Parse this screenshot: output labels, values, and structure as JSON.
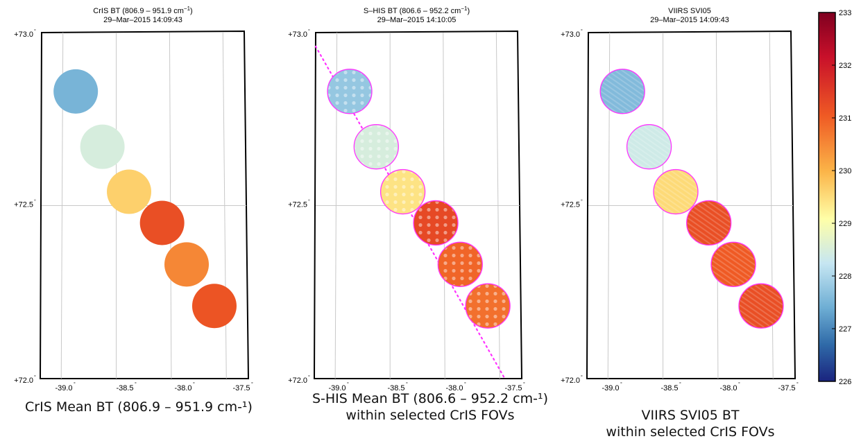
{
  "colorbar": {
    "min": 226,
    "max": 233,
    "ticks": [
      "233",
      "232",
      "231",
      "230",
      "229",
      "228",
      "227",
      "226"
    ]
  },
  "chart_data": [
    {
      "type": "map",
      "title_line1": "CrIS BT (806.9 – 951.9 cm",
      "title_sup": "−1",
      "title_close": ")",
      "title_line2": "29–Mar–2015 14:09:43",
      "lat_range": [
        72.0,
        73.0
      ],
      "lon_range": [
        -39.2,
        -37.3
      ],
      "lat_ticks": [
        "+73.0",
        "+72.5",
        "+72.0"
      ],
      "lon_ticks": [
        "-39.0",
        "-38.5",
        "-38.0",
        "-37.5"
      ],
      "fovs": [
        {
          "lon": -38.88,
          "lat": 72.83,
          "bt": 227.6
        },
        {
          "lon": -38.63,
          "lat": 72.67,
          "bt": 228.6
        },
        {
          "lon": -38.38,
          "lat": 72.54,
          "bt": 229.6
        },
        {
          "lon": -38.07,
          "lat": 72.45,
          "bt": 230.9
        },
        {
          "lon": -37.84,
          "lat": 72.33,
          "bt": 230.3
        },
        {
          "lon": -37.58,
          "lat": 72.21,
          "bt": 230.8
        }
      ],
      "caption": [
        "CrIS Mean BT (806.9 – 951.9 cm-¹)"
      ]
    },
    {
      "type": "map",
      "title_line1": "S–HIS BT (806.6 – 952.2 cm",
      "title_sup": "−1",
      "title_close": ")",
      "title_line2": "29–Mar–2015 14:10:05",
      "lat_range": [
        72.0,
        73.0
      ],
      "lon_range": [
        -39.2,
        -37.3
      ],
      "lat_ticks": [
        "+73.0",
        "+72.5",
        "+72.0"
      ],
      "lon_ticks": [
        "-39.0",
        "-38.5",
        "-38.0",
        "-37.5"
      ],
      "fovs": [
        {
          "lon": -38.88,
          "lat": 72.83,
          "bt": 227.9
        },
        {
          "lon": -38.63,
          "lat": 72.67,
          "bt": 228.6
        },
        {
          "lon": -38.38,
          "lat": 72.54,
          "bt": 229.4
        },
        {
          "lon": -38.07,
          "lat": 72.45,
          "bt": 231.0
        },
        {
          "lon": -37.84,
          "lat": 72.33,
          "bt": 230.6
        },
        {
          "lon": -37.58,
          "lat": 72.21,
          "bt": 230.5
        }
      ],
      "flight_track": [
        [
          -39.2,
          72.96
        ],
        [
          -37.42,
          72.0
        ]
      ],
      "caption": [
        "S-HIS Mean BT (806.6 – 952.2 cm-¹)",
        "within selected CrIS FOVs"
      ]
    },
    {
      "type": "map",
      "title_line1": "VIIRS SVI05",
      "title_sup": "",
      "title_close": "",
      "title_line2": "29–Mar–2015 14:09:43",
      "lat_range": [
        72.0,
        73.0
      ],
      "lon_range": [
        -39.2,
        -37.3
      ],
      "lat_ticks": [
        "+73.0",
        "+72.5",
        "+72.0"
      ],
      "lon_ticks": [
        "-39.0",
        "-38.5",
        "-38.0",
        "-37.5"
      ],
      "fovs": [
        {
          "lon": -38.88,
          "lat": 72.83,
          "bt": 227.7
        },
        {
          "lon": -38.63,
          "lat": 72.67,
          "bt": 228.5
        },
        {
          "lon": -38.38,
          "lat": 72.54,
          "bt": 229.5
        },
        {
          "lon": -38.07,
          "lat": 72.45,
          "bt": 230.9
        },
        {
          "lon": -37.84,
          "lat": 72.33,
          "bt": 230.7
        },
        {
          "lon": -37.58,
          "lat": 72.21,
          "bt": 230.9
        }
      ],
      "caption": [
        "VIIRS SVI05 BT",
        "within selected CrIS FOVs"
      ]
    }
  ]
}
